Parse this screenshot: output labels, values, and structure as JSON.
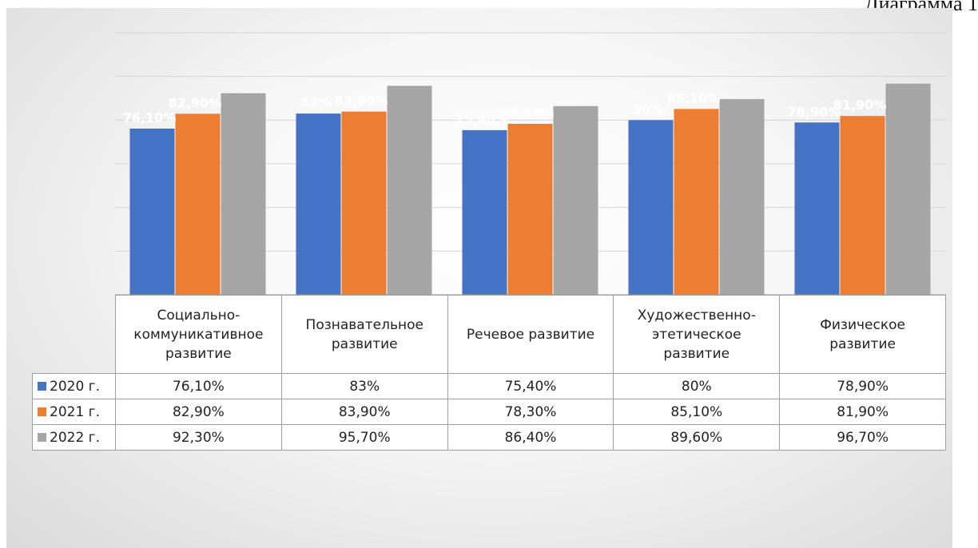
{
  "caption": "Диаграмма 1",
  "chart_data": {
    "type": "bar",
    "categories": [
      "Социально-коммуникативное развитие",
      "Познавательное развитие",
      "Речевое развитие",
      "Художественно-этетическое развитие",
      "Физическое развитие"
    ],
    "category_lines": [
      [
        "Социально-",
        "коммуникативное",
        "развитие"
      ],
      [
        "Познавательное",
        "развитие"
      ],
      [
        "Речевое развитие"
      ],
      [
        "Художественно-",
        "этетическое",
        "развитие"
      ],
      [
        "Физическое",
        "развитие"
      ]
    ],
    "series": [
      {
        "name": "2020 г.",
        "values": [
          76.1,
          83,
          75.4,
          80,
          78.9
        ],
        "labels": [
          "76,10%",
          "83%",
          "75,40%",
          "80%",
          "78,90%"
        ],
        "color": "#4472C4"
      },
      {
        "name": "2021 г.",
        "values": [
          82.9,
          83.9,
          78.3,
          85.1,
          81.9
        ],
        "labels": [
          "82,90%",
          "83,90%",
          "78,30%",
          "85,10%",
          "81,90%"
        ],
        "color": "#ED7D31"
      },
      {
        "name": "2022 г.",
        "values": [
          92.3,
          95.7,
          86.4,
          89.6,
          96.7
        ],
        "labels": [
          "92,30%",
          "95,70%",
          "86,40%",
          "89,60%",
          "96,70%"
        ],
        "color": "#A5A5A5"
      }
    ],
    "ylim": [
      0,
      120
    ],
    "grid": true,
    "data_table": true,
    "legend": "data-table"
  }
}
